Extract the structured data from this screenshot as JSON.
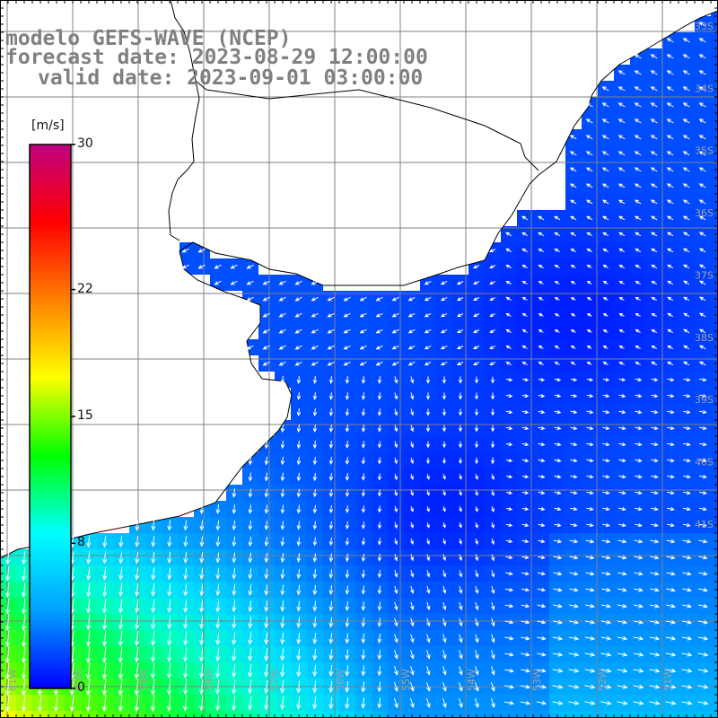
{
  "title": {
    "model": "modelo GEFS-WAVE (NCEP)",
    "forecast_date": "forecast date: 2023-08-29 12:00:00",
    "valid_date": "valid date: 2023-09-01 03:00:00"
  },
  "colorbar": {
    "unit": "[m/s]",
    "min": 0,
    "max": 30,
    "ticks": [
      "30",
      "22",
      "15",
      "8",
      "0"
    ],
    "tick_values": [
      30,
      22,
      15,
      8,
      0
    ],
    "colors": [
      "#0000ff",
      "#00a0ff",
      "#00ffff",
      "#00ff00",
      "#ffff00",
      "#ff8000",
      "#ff0000",
      "#c00080"
    ]
  },
  "map": {
    "lon_range": [
      -62,
      -51
    ],
    "lat_range": [
      -41.3,
      -32.8
    ],
    "lat_labels": [
      "33S",
      "34S",
      "35S",
      "36S",
      "37S",
      "38S",
      "39S",
      "40S",
      "41S"
    ],
    "lon_labels": [
      "61W",
      "60W",
      "59W",
      "58W",
      "57W",
      "56W",
      "55W",
      "54W",
      "53W",
      "52W",
      "51W"
    ],
    "land_color": "#ffffff",
    "coast_color": "#000000",
    "grid_color": "#808080",
    "arrow_color": "#ffffff"
  }
}
